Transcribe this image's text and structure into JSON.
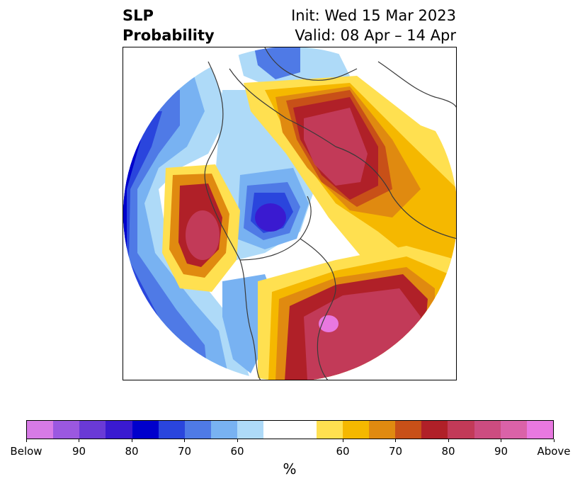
{
  "title": {
    "left_line1": "SLP",
    "left_line2": "Probability",
    "right_line1": "Init: Wed 15 Mar 2023",
    "right_line2": "Valid: 08 Apr – 14 Apr"
  },
  "map": {
    "projection": "north polar stereographic",
    "colors": {
      "below_90_plus": "#2020c0",
      "below_80": "#0000cc",
      "below_70": "#2a45dd",
      "below_60": "#4f7ae6",
      "below_50": "#78b2f2",
      "below_40": "#aedaf8",
      "neutral": "#ffffff",
      "above_40": "#ffe050",
      "above_50": "#f5b800",
      "above_60": "#e08a10",
      "above_70": "#c85018",
      "above_80": "#b02028",
      "above_90": "#c23a58",
      "above_95": "#cc4c80"
    }
  },
  "colorbar": {
    "colors": [
      "#d77ae6",
      "#9b58e0",
      "#6a3ad6",
      "#3a1ad0",
      "#0000cc",
      "#2a45dd",
      "#4f7ae6",
      "#78b2f2",
      "#aedaf8",
      "#ffffff",
      "#ffe050",
      "#f5b800",
      "#e08a10",
      "#c85018",
      "#b02028",
      "#c23a58",
      "#cc4c80",
      "#da62a8",
      "#e878e0"
    ],
    "labels": [
      "Below",
      "90",
      "80",
      "70",
      "60",
      "60",
      "70",
      "80",
      "90",
      "Above"
    ],
    "units": "%"
  }
}
